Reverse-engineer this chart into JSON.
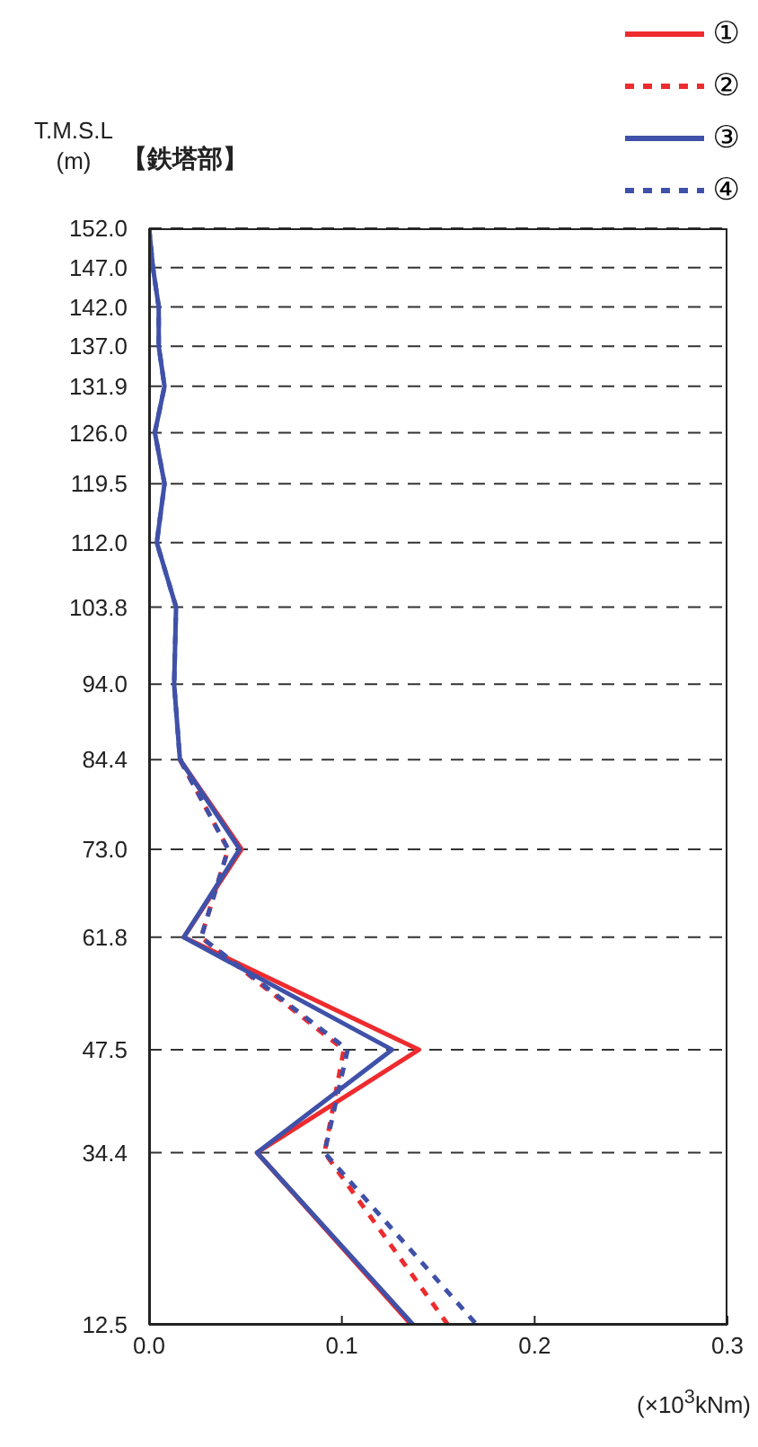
{
  "chart_data": {
    "type": "line",
    "ylabel": "T.M.S.L\n(m)",
    "xlabel": "(×10$^{3}$kNm)",
    "annotations": [
      "【鉄塔部】"
    ],
    "xlim": [
      0,
      0.3
    ],
    "xticks": [
      {
        "value": 0,
        "label": "0.0"
      },
      0.1,
      0.2,
      0.3
    ],
    "ylim": [
      12.5,
      152.0
    ],
    "yticks": [
      12.5,
      34.4,
      47.5,
      61.8,
      {
        "value": 73.0,
        "label": "73.0"
      },
      84.4,
      {
        "value": 94.0,
        "label": "94.0"
      },
      103.8,
      {
        "value": 112.0,
        "label": "112.0"
      },
      119.5,
      {
        "value": 126.0,
        "label": "126.0"
      },
      131.9,
      {
        "value": 137.0,
        "label": "137.0"
      },
      {
        "value": 142.0,
        "label": "142.0"
      },
      {
        "value": 147.0,
        "label": "147.0"
      },
      {
        "value": 152.0,
        "label": "152.0"
      }
    ],
    "grid": "y",
    "legend": "top right",
    "series": [
      {
        "name": "①",
        "color": "#ee2b2e",
        "line_style": "solid",
        "x": [
          0.016,
          0.048,
          0.018,
          0.14,
          0.056,
          0.136
        ],
        "values": [
          84.4,
          73.0,
          61.8,
          47.5,
          34.4,
          12.5
        ]
      },
      {
        "name": "②",
        "color": "#ee2b2e",
        "line_style": "dashed",
        "x": [
          0.016,
          0.041,
          0.027,
          0.101,
          0.091,
          0.155
        ],
        "values": [
          84.4,
          73.0,
          61.8,
          47.5,
          34.4,
          12.5
        ]
      },
      {
        "name": "③",
        "color": "#3f51a8",
        "line_style": "solid",
        "x": [
          0.0,
          0.002,
          0.005,
          0.005,
          0.008,
          0.003,
          0.008,
          0.004,
          0.014,
          0.013,
          0.016,
          0.047,
          0.018,
          0.126,
          0.056,
          0.137
        ],
        "values": [
          152.0,
          147.0,
          142.0,
          137.0,
          131.9,
          126.0,
          119.5,
          112.0,
          103.8,
          94.0,
          84.4,
          73.0,
          61.8,
          47.5,
          34.4,
          12.5
        ]
      },
      {
        "name": "④",
        "color": "#3f51a8",
        "line_style": "dashed",
        "x": [
          0.0,
          0.002,
          0.005,
          0.005,
          0.008,
          0.003,
          0.008,
          0.004,
          0.014,
          0.013,
          0.016,
          0.041,
          0.027,
          0.103,
          0.091,
          0.17
        ],
        "values": [
          152.0,
          147.0,
          142.0,
          137.0,
          131.9,
          126.0,
          119.5,
          112.0,
          103.8,
          94.0,
          84.4,
          73.0,
          61.8,
          47.5,
          34.4,
          12.5
        ]
      }
    ]
  }
}
